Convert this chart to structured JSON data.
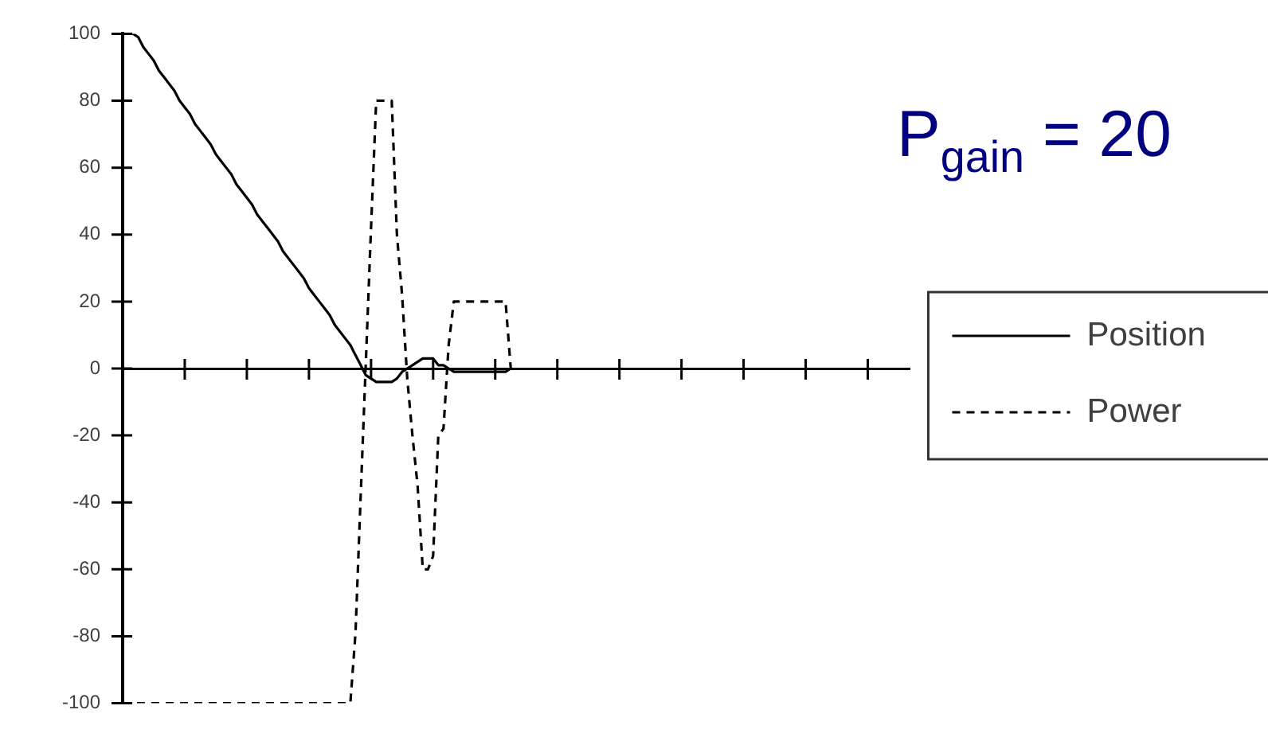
{
  "chart_data": {
    "type": "line",
    "annotations": [
      "P$_{gain}$ = 20"
    ],
    "categories": [
      null,
      null,
      null,
      null,
      null,
      null,
      null,
      null,
      null,
      null,
      null,
      null,
      null,
      null,
      null,
      null,
      null,
      null,
      null,
      null,
      null,
      null,
      null,
      null,
      null,
      null,
      null,
      null,
      null,
      null,
      null,
      null,
      null,
      null,
      null,
      null,
      null,
      null,
      null,
      null,
      null,
      null,
      null,
      null,
      null,
      null,
      null,
      null,
      null,
      null,
      null,
      null,
      null,
      null,
      null,
      null,
      null,
      null,
      null,
      null,
      null,
      null,
      null,
      null,
      null,
      null,
      null,
      null,
      null,
      null,
      null,
      null,
      null,
      null,
      null,
      null,
      null,
      null,
      null,
      null,
      null,
      null,
      null,
      null,
      null,
      null,
      null,
      null,
      null,
      null,
      null,
      null,
      null,
      null,
      null,
      null,
      null,
      null,
      null,
      null,
      null,
      null,
      null,
      null,
      null,
      null,
      null,
      null,
      null,
      null,
      null,
      null,
      null,
      null,
      null,
      null,
      null,
      null,
      null,
      null,
      null,
      null,
      null,
      null,
      null,
      null,
      null,
      null,
      null,
      null,
      null,
      null,
      null,
      null,
      null,
      null,
      null,
      null,
      null,
      null,
      null,
      null,
      null,
      null,
      null,
      null,
      null,
      null,
      null,
      null,
      null,
      null,
      null
    ],
    "series": [
      {
        "name": "Position",
        "color": "#000000",
        "line_style": "solid",
        "values": [
          100,
          100,
          100,
          99,
          96,
          94,
          92,
          89,
          87,
          85,
          83,
          80,
          78,
          76,
          73,
          71,
          69,
          67,
          64,
          62,
          60,
          58,
          55,
          53,
          51,
          49,
          46,
          44,
          42,
          40,
          38,
          35,
          33,
          31,
          29,
          27,
          24,
          22,
          20,
          18,
          16,
          13,
          11,
          9,
          7,
          4,
          1,
          -2,
          -3,
          -4,
          -4,
          -4,
          -4,
          -3,
          -1,
          0,
          1,
          2,
          3,
          3,
          3,
          1,
          1,
          0,
          -1,
          -1,
          -1,
          -1,
          -1,
          -1,
          -1,
          -1,
          -1,
          -1,
          -1,
          0,
          null,
          null,
          null,
          null,
          null,
          null,
          null,
          null,
          null,
          null,
          null,
          null,
          null,
          null,
          null,
          null,
          null,
          null,
          null,
          null,
          null,
          null,
          null,
          null,
          null,
          null,
          null,
          null,
          null,
          null,
          null,
          null,
          null,
          null,
          null,
          null,
          null,
          null,
          null,
          null,
          null,
          null,
          null,
          null,
          null,
          null,
          null,
          null,
          null,
          null,
          null,
          null,
          null,
          null,
          null,
          null,
          null,
          null,
          null,
          null,
          null,
          null,
          null,
          null,
          null,
          null,
          null,
          null,
          null,
          null,
          null,
          null,
          null,
          null,
          null,
          null,
          null
        ]
      },
      {
        "name": "Power",
        "color": "#000000",
        "line_style": "dashed",
        "values": [
          -100,
          -100,
          -100,
          -100,
          -100,
          -100,
          -100,
          -100,
          -100,
          -100,
          -100,
          -100,
          -100,
          -100,
          -100,
          -100,
          -100,
          -100,
          -100,
          -100,
          -100,
          -100,
          -100,
          -100,
          -100,
          -100,
          -100,
          -100,
          -100,
          -100,
          -100,
          -100,
          -100,
          -100,
          -100,
          -100,
          -100,
          -100,
          -100,
          -100,
          -100,
          -100,
          -100,
          -100,
          -100,
          -79,
          -38,
          2,
          42,
          80,
          80,
          80,
          80,
          40,
          22,
          -3,
          -20,
          -35,
          -60,
          -60,
          -56,
          -20,
          -18,
          7,
          20,
          20,
          20,
          20,
          20,
          20,
          20,
          20,
          20,
          20,
          20,
          0,
          null,
          null,
          null,
          null,
          null,
          null,
          null,
          null,
          null,
          null,
          null,
          null,
          null,
          null,
          null,
          null,
          null,
          null,
          null,
          null,
          null,
          null,
          null,
          null,
          null,
          null,
          null,
          null,
          null,
          null,
          null,
          null,
          null,
          null,
          null,
          null,
          null,
          null,
          null,
          null,
          null,
          null,
          null,
          null,
          null,
          null,
          null,
          null,
          null,
          null,
          null,
          null,
          null,
          null,
          null,
          null,
          null,
          null,
          null,
          null,
          null,
          null,
          null,
          null,
          null,
          null,
          null,
          null,
          null,
          null,
          null,
          null,
          null,
          null,
          null,
          null,
          null
        ]
      }
    ],
    "ylim": [
      -100,
      100
    ],
    "yticks": [
      -100,
      -80,
      -60,
      -40,
      -20,
      0,
      20,
      40,
      60,
      80,
      100
    ],
    "legend": "right",
    "tick_labels": "y"
  }
}
